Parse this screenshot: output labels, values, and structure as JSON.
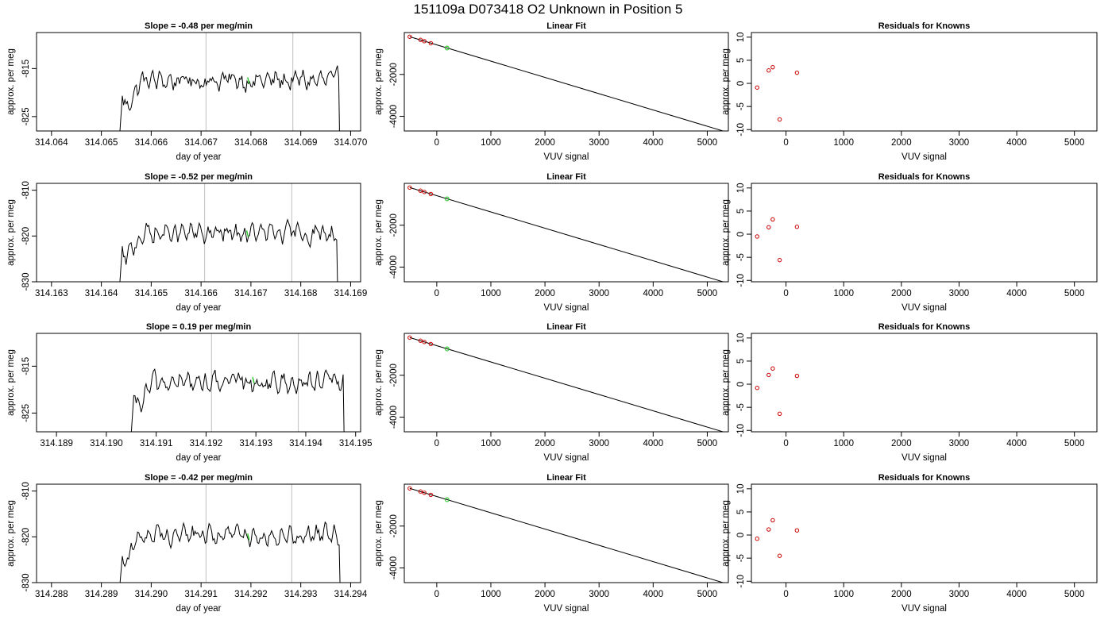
{
  "figure_title": "151109a      D073418   O2 Unknown in Position  5",
  "colors": {
    "trace": "#000000",
    "vline": "#c8c8c8",
    "known_points": "#cc0000",
    "unknown_point": "#33cc33",
    "axis": "#000000"
  },
  "chart_data": [
    {
      "type": "line",
      "row": 0,
      "column": "slope",
      "title": "Slope =  -0.48  per meg/min",
      "xlabel": "day of year",
      "ylabel": "approx. per meg",
      "xlim": [
        314.0637,
        314.0702
      ],
      "ylim": [
        -828,
        -807.5
      ],
      "x_ticks": [
        314.064,
        314.065,
        314.066,
        314.067,
        314.068,
        314.069,
        314.07
      ],
      "x_tick_labels": [
        "314.064",
        "314.065",
        "314.066",
        "314.067",
        "314.068",
        "314.069",
        "314.070"
      ],
      "y_ticks": [
        -825,
        -815
      ],
      "y_tick_labels": [
        "-825",
        "-815"
      ],
      "series": [
        {
          "x_start": 314.06542,
          "x_end": 314.06976,
          "baseline": -817.5,
          "amplitude": 2.6,
          "drop_to": -830
        }
      ],
      "vlines": [
        314.0671,
        314.06884
      ],
      "unknown_point": {
        "x": 314.06795,
        "y": -817.5
      }
    },
    {
      "type": "line",
      "row": 0,
      "column": "fit",
      "title": "Linear Fit",
      "xlabel": "VUV signal",
      "ylabel": "approx. per meg",
      "xlim": [
        -600,
        5390
      ],
      "ylim": [
        -4700,
        0
      ],
      "x_ticks": [
        0,
        1000,
        2000,
        3000,
        4000,
        5000
      ],
      "x_tick_labels": [
        "0",
        "1000",
        "2000",
        "3000",
        "4000",
        "5000"
      ],
      "y_ticks": [
        -4000,
        -2000
      ],
      "y_tick_labels": [
        "-4000",
        "-2000"
      ],
      "fit_line": {
        "x": [
          -500,
          5290
        ],
        "y": [
          -200,
          -4700
        ]
      },
      "known_points": {
        "x": [
          -500,
          -300,
          -230,
          -110
        ],
        "y": [
          -200,
          -350,
          -410,
          -510
        ]
      },
      "unknown_point": {
        "x": 190,
        "y": -740
      }
    },
    {
      "type": "scatter",
      "row": 0,
      "column": "residuals",
      "title": "Residuals for Knowns",
      "xlabel": "VUV signal",
      "ylabel": "approx. per meg",
      "xlim": [
        -600,
        5390
      ],
      "ylim": [
        -10.3,
        11
      ],
      "x_ticks": [
        0,
        1000,
        2000,
        3000,
        4000,
        5000
      ],
      "x_tick_labels": [
        "0",
        "1000",
        "2000",
        "3000",
        "4000",
        "5000"
      ],
      "y_ticks": [
        -10,
        -5,
        0,
        5,
        10
      ],
      "y_tick_labels": [
        "-10",
        "-5",
        "0",
        "5",
        "10"
      ],
      "points": {
        "x": [
          -500,
          -300,
          -230,
          -110,
          190
        ],
        "y": [
          -0.9,
          2.8,
          3.5,
          -7.8,
          2.3
        ]
      }
    },
    {
      "type": "line",
      "row": 1,
      "column": "slope",
      "title": "Slope =  -0.52  per meg/min",
      "xlabel": "day of year",
      "ylabel": "approx. per meg",
      "xlim": [
        314.1627,
        314.1692
      ],
      "ylim": [
        -830,
        -808.5
      ],
      "x_ticks": [
        314.163,
        314.164,
        314.165,
        314.166,
        314.167,
        314.168,
        314.169
      ],
      "x_tick_labels": [
        "314.163",
        "314.164",
        "314.165",
        "314.166",
        "314.167",
        "314.168",
        "314.169"
      ],
      "y_ticks": [
        -830,
        -820,
        -810
      ],
      "y_tick_labels": [
        "-830",
        "-820",
        "-810"
      ],
      "series": [
        {
          "x_start": 314.16442,
          "x_end": 314.16872,
          "baseline": -819.5,
          "amplitude": 2.6,
          "drop_to": -832
        }
      ],
      "vlines": [
        314.16607,
        314.16782
      ],
      "unknown_point": {
        "x": 314.16693,
        "y": -819.5
      }
    },
    {
      "type": "line",
      "row": 1,
      "column": "fit",
      "title": "Linear Fit",
      "xlabel": "VUV signal",
      "ylabel": "approx. per meg",
      "xlim": [
        -600,
        5390
      ],
      "ylim": [
        -4700,
        0
      ],
      "x_ticks": [
        0,
        1000,
        2000,
        3000,
        4000,
        5000
      ],
      "x_tick_labels": [
        "0",
        "1000",
        "2000",
        "3000",
        "4000",
        "5000"
      ],
      "y_ticks": [
        -4000,
        -2000
      ],
      "y_tick_labels": [
        "-4000",
        "-2000"
      ],
      "fit_line": {
        "x": [
          -500,
          5290
        ],
        "y": [
          -200,
          -4700
        ]
      },
      "known_points": {
        "x": [
          -500,
          -300,
          -230,
          -110
        ],
        "y": [
          -200,
          -350,
          -410,
          -510
        ]
      },
      "unknown_point": {
        "x": 190,
        "y": -740
      }
    },
    {
      "type": "scatter",
      "row": 1,
      "column": "residuals",
      "title": "Residuals for Knowns",
      "xlabel": "VUV signal",
      "ylabel": "approx. per meg",
      "xlim": [
        -600,
        5390
      ],
      "ylim": [
        -10.3,
        11
      ],
      "x_ticks": [
        0,
        1000,
        2000,
        3000,
        4000,
        5000
      ],
      "x_tick_labels": [
        "0",
        "1000",
        "2000",
        "3000",
        "4000",
        "5000"
      ],
      "y_ticks": [
        -10,
        -5,
        0,
        5,
        10
      ],
      "y_tick_labels": [
        "-10",
        "-5",
        "0",
        "5",
        "10"
      ],
      "points": {
        "x": [
          -500,
          -300,
          -230,
          -110,
          190
        ],
        "y": [
          -0.5,
          1.5,
          3.2,
          -5.6,
          1.6
        ]
      }
    },
    {
      "type": "line",
      "row": 2,
      "column": "slope",
      "title": "Slope =  0.19  per meg/min",
      "xlabel": "day of year",
      "ylabel": "approx. per meg",
      "xlim": [
        314.1886,
        314.1951
      ],
      "ylim": [
        -829,
        -808
      ],
      "x_ticks": [
        314.189,
        314.19,
        314.191,
        314.192,
        314.193,
        314.194,
        314.195
      ],
      "x_tick_labels": [
        "314.189",
        "314.190",
        "314.191",
        "314.192",
        "314.193",
        "314.194",
        "314.195"
      ],
      "y_ticks": [
        -825,
        -815
      ],
      "y_tick_labels": [
        "-825",
        "-815"
      ],
      "series": [
        {
          "x_start": 314.19055,
          "x_end": 314.19475,
          "baseline": -818.5,
          "amplitude": 2.6,
          "drop_to": -831
        }
      ],
      "vlines": [
        314.19211,
        314.19385
      ],
      "unknown_point": {
        "x": 314.19295,
        "y": -818
      }
    },
    {
      "type": "line",
      "row": 2,
      "column": "fit",
      "title": "Linear Fit",
      "xlabel": "VUV signal",
      "ylabel": "approx. per meg",
      "xlim": [
        -600,
        5390
      ],
      "ylim": [
        -4700,
        0
      ],
      "x_ticks": [
        0,
        1000,
        2000,
        3000,
        4000,
        5000
      ],
      "x_tick_labels": [
        "0",
        "1000",
        "2000",
        "3000",
        "4000",
        "5000"
      ],
      "y_ticks": [
        -4000,
        -2000
      ],
      "y_tick_labels": [
        "-4000",
        "-2000"
      ],
      "fit_line": {
        "x": [
          -500,
          5290
        ],
        "y": [
          -200,
          -4700
        ]
      },
      "known_points": {
        "x": [
          -500,
          -300,
          -230,
          -110
        ],
        "y": [
          -200,
          -350,
          -410,
          -510
        ]
      },
      "unknown_point": {
        "x": 190,
        "y": -740
      }
    },
    {
      "type": "scatter",
      "row": 2,
      "column": "residuals",
      "title": "Residuals for Knowns",
      "xlabel": "VUV signal",
      "ylabel": "approx. per meg",
      "xlim": [
        -600,
        5390
      ],
      "ylim": [
        -10.3,
        11
      ],
      "x_ticks": [
        0,
        1000,
        2000,
        3000,
        4000,
        5000
      ],
      "x_tick_labels": [
        "0",
        "1000",
        "2000",
        "3000",
        "4000",
        "5000"
      ],
      "y_ticks": [
        -10,
        -5,
        0,
        5,
        10
      ],
      "y_tick_labels": [
        "-10",
        "-5",
        "0",
        "5",
        "10"
      ],
      "points": {
        "x": [
          -500,
          -300,
          -230,
          -110,
          190
        ],
        "y": [
          -0.8,
          2.0,
          3.4,
          -6.4,
          1.8
        ]
      }
    },
    {
      "type": "line",
      "row": 3,
      "column": "slope",
      "title": "Slope =  -0.42  per meg/min",
      "xlabel": "day of year",
      "ylabel": "approx. per meg",
      "xlim": [
        314.2877,
        314.2942
      ],
      "ylim": [
        -830,
        -808.5
      ],
      "x_ticks": [
        314.288,
        314.289,
        314.29,
        314.291,
        314.292,
        314.293,
        314.294
      ],
      "x_tick_labels": [
        "314.288",
        "314.289",
        "314.290",
        "314.291",
        "314.292",
        "314.293",
        "314.294"
      ],
      "y_ticks": [
        -830,
        -820,
        -810
      ],
      "y_tick_labels": [
        "-830",
        "-820",
        "-810"
      ],
      "series": [
        {
          "x_start": 314.28942,
          "x_end": 314.29377,
          "baseline": -819.5,
          "amplitude": 2.6,
          "drop_to": -832
        }
      ],
      "vlines": [
        314.2911,
        314.29282
      ],
      "unknown_point": {
        "x": 314.29195,
        "y": -820
      }
    },
    {
      "type": "line",
      "row": 3,
      "column": "fit",
      "title": "Linear Fit",
      "xlabel": "VUV signal",
      "ylabel": "approx. per meg",
      "xlim": [
        -600,
        5390
      ],
      "ylim": [
        -4700,
        0
      ],
      "x_ticks": [
        0,
        1000,
        2000,
        3000,
        4000,
        5000
      ],
      "x_tick_labels": [
        "0",
        "1000",
        "2000",
        "3000",
        "4000",
        "5000"
      ],
      "y_ticks": [
        -4000,
        -2000
      ],
      "y_tick_labels": [
        "-4000",
        "-2000"
      ],
      "fit_line": {
        "x": [
          -500,
          5290
        ],
        "y": [
          -200,
          -4700
        ]
      },
      "known_points": {
        "x": [
          -500,
          -300,
          -230,
          -110
        ],
        "y": [
          -200,
          -350,
          -410,
          -510
        ]
      },
      "unknown_point": {
        "x": 190,
        "y": -740
      }
    },
    {
      "type": "scatter",
      "row": 3,
      "column": "residuals",
      "title": "Residuals for Knowns",
      "xlabel": "VUV signal",
      "ylabel": "approx. per meg",
      "xlim": [
        -600,
        5390
      ],
      "ylim": [
        -10.3,
        11
      ],
      "x_ticks": [
        0,
        1000,
        2000,
        3000,
        4000,
        5000
      ],
      "x_tick_labels": [
        "0",
        "1000",
        "2000",
        "3000",
        "4000",
        "5000"
      ],
      "y_ticks": [
        -10,
        -5,
        0,
        5,
        10
      ],
      "y_tick_labels": [
        "-10",
        "-5",
        "0",
        "5",
        "10"
      ],
      "points": {
        "x": [
          -500,
          -300,
          -230,
          -110,
          190
        ],
        "y": [
          -0.8,
          1.2,
          3.2,
          -4.5,
          1.0
        ]
      }
    }
  ]
}
